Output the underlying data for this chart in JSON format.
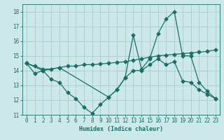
{
  "title": "",
  "xlabel": "Humidex (Indice chaleur)",
  "xlim": [
    -0.5,
    23.5
  ],
  "ylim": [
    11,
    18.5
  ],
  "yticks": [
    11,
    12,
    13,
    14,
    15,
    16,
    17,
    18
  ],
  "xticks": [
    0,
    1,
    2,
    3,
    4,
    5,
    6,
    7,
    8,
    9,
    10,
    11,
    12,
    13,
    14,
    15,
    16,
    17,
    18,
    19,
    20,
    21,
    22,
    23
  ],
  "background_color": "#cce8e8",
  "grid_color": "#aacccc",
  "line_color": "#1a6e6a",
  "line1_x": [
    0,
    1,
    2,
    3,
    4,
    5,
    6,
    7,
    8,
    9,
    10,
    11,
    12,
    13,
    14,
    15,
    16,
    17,
    18,
    19,
    20,
    21,
    22,
    23
  ],
  "line1_y": [
    14.5,
    13.8,
    14.0,
    13.4,
    13.2,
    12.5,
    12.1,
    11.5,
    11.1,
    11.7,
    12.2,
    12.7,
    13.5,
    14.0,
    14.0,
    14.4,
    14.8,
    14.4,
    14.6,
    13.3,
    13.2,
    12.7,
    12.4,
    12.1
  ],
  "line2_x": [
    0,
    1,
    2,
    3,
    4,
    5,
    6,
    7,
    8,
    9,
    10,
    11,
    12,
    13,
    14,
    15,
    16,
    17,
    18,
    19,
    20,
    21,
    22,
    23
  ],
  "line2_y": [
    14.5,
    14.3,
    14.1,
    14.1,
    14.2,
    14.3,
    14.3,
    14.4,
    14.4,
    14.45,
    14.5,
    14.55,
    14.6,
    14.7,
    14.8,
    14.9,
    15.0,
    15.05,
    15.1,
    15.15,
    15.2,
    15.25,
    15.3,
    15.4
  ],
  "line3_x": [
    0,
    2,
    4,
    10,
    11,
    12,
    13,
    14,
    15,
    16,
    17,
    18,
    19,
    20,
    21,
    22,
    23
  ],
  "line3_y": [
    14.5,
    14.0,
    14.2,
    12.2,
    12.7,
    13.5,
    16.4,
    14.1,
    14.8,
    16.5,
    17.5,
    18.0,
    15.0,
    15.0,
    13.2,
    12.6,
    12.1
  ],
  "marker": "D",
  "markersize": 2.5,
  "linewidth": 0.9
}
